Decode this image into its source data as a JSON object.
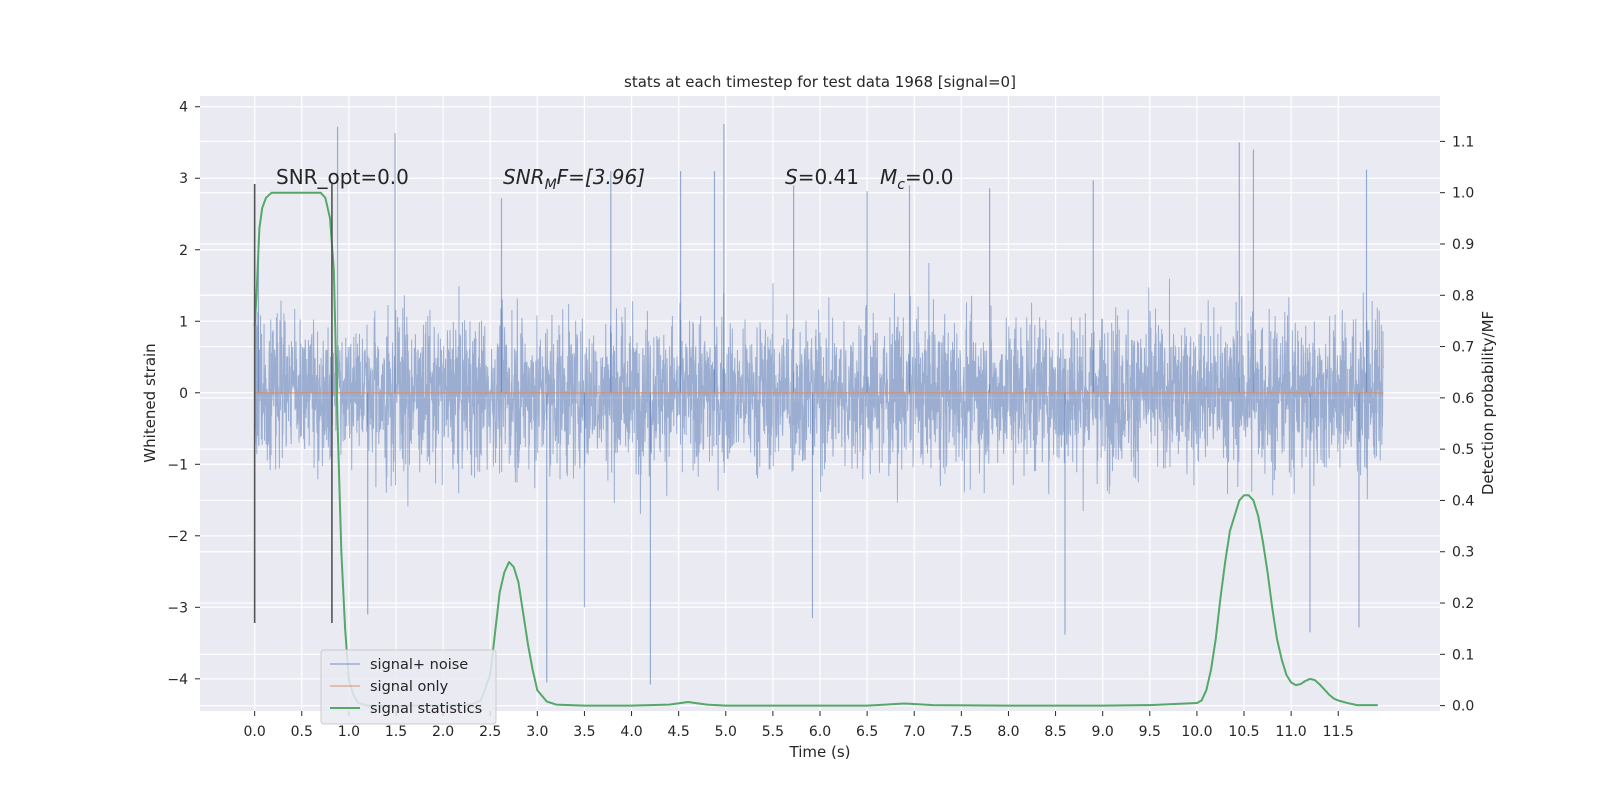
{
  "chart_data": {
    "type": "line",
    "title": "stats at each timestep for test data 1968 [signal=0]",
    "xlabel": "Time (s)",
    "ylabel": "Whitened strain",
    "y2label": "Detection probability/MF",
    "xlim": [
      -0.58,
      12.58
    ],
    "ylim": [
      -4.45,
      4.15
    ],
    "y2lim": [
      -0.0105,
      1.1885
    ],
    "x_ticks": [
      "0.0",
      "0.5",
      "1.0",
      "1.5",
      "2.0",
      "2.5",
      "3.0",
      "3.5",
      "4.0",
      "4.5",
      "5.0",
      "5.5",
      "6.0",
      "6.5",
      "7.0",
      "7.5",
      "8.0",
      "8.5",
      "9.0",
      "9.5",
      "10.0",
      "10.5",
      "11.0",
      "11.5"
    ],
    "y_ticks": [
      "−4",
      "−3",
      "−2",
      "−1",
      "0",
      "1",
      "2",
      "3",
      "4"
    ],
    "y2_ticks": [
      "0.0",
      "0.1",
      "0.2",
      "0.3",
      "0.4",
      "0.5",
      "0.6",
      "0.7",
      "0.8",
      "0.9",
      "1.0",
      "1.1"
    ],
    "grid": true,
    "legend_position": "lower-left",
    "annotations": {
      "snr_opt": "SNR_opt=0.0",
      "snr_mf": {
        "base": "SNR",
        "sub": "M",
        "rest": "F=[3.96]"
      },
      "s": {
        "symbol": "S",
        "rest": "=0.41"
      },
      "mc": {
        "base": "M",
        "sub": "c",
        "rest": "=0.0"
      }
    },
    "vertical_markers": [
      {
        "x": 0.0,
        "y_range": [
          -3.22,
          2.92
        ]
      },
      {
        "x": 0.82,
        "y_range": [
          -3.22,
          2.92
        ]
      }
    ],
    "series": [
      {
        "name": "signal+ noise",
        "color": "#4c72b0",
        "axis": "left",
        "description_type": "noise",
        "x_range": [
          0.0,
          11.98
        ],
        "typical_envelope": [
          -2.2,
          2.2
        ],
        "spikes": [
          [
            0.04,
            2.15
          ],
          [
            0.88,
            3.72
          ],
          [
            1.49,
            3.63
          ],
          [
            2.62,
            2.72
          ],
          [
            3.1,
            -4.05
          ],
          [
            3.5,
            -3.0
          ],
          [
            3.78,
            3.1
          ],
          [
            4.2,
            -4.08
          ],
          [
            4.52,
            3.1
          ],
          [
            4.98,
            3.76
          ],
          [
            4.88,
            3.1
          ],
          [
            5.72,
            2.9
          ],
          [
            5.92,
            -3.15
          ],
          [
            6.95,
            2.9
          ],
          [
            8.6,
            -3.38
          ],
          [
            8.9,
            2.97
          ],
          [
            10.45,
            3.5
          ],
          [
            10.6,
            3.4
          ],
          [
            11.2,
            -3.35
          ],
          [
            11.8,
            3.12
          ],
          [
            11.72,
            -3.28
          ],
          [
            1.2,
            -3.1
          ],
          [
            6.5,
            2.82
          ],
          [
            7.8,
            2.86
          ]
        ]
      },
      {
        "name": "signal only",
        "color": "#dd8452",
        "axis": "left",
        "x": [
          0.0,
          11.98
        ],
        "y": [
          0.0,
          0.0
        ]
      },
      {
        "name": "signal statistics",
        "color": "#55a868",
        "axis": "right",
        "x": [
          0.0,
          0.02,
          0.05,
          0.08,
          0.12,
          0.18,
          0.3,
          0.5,
          0.7,
          0.75,
          0.8,
          0.84,
          0.88,
          0.92,
          0.96,
          1.0,
          1.05,
          1.1,
          1.2,
          1.5,
          2.0,
          2.3,
          2.4,
          2.5,
          2.55,
          2.6,
          2.65,
          2.7,
          2.75,
          2.8,
          2.85,
          2.9,
          2.95,
          3.0,
          3.1,
          3.2,
          3.5,
          4.0,
          4.4,
          4.6,
          4.8,
          5.0,
          6.0,
          6.5,
          6.9,
          7.2,
          8.0,
          9.0,
          9.5,
          10.0,
          10.05,
          10.1,
          10.15,
          10.2,
          10.25,
          10.3,
          10.35,
          10.4,
          10.45,
          10.5,
          10.55,
          10.6,
          10.65,
          10.7,
          10.75,
          10.8,
          10.85,
          10.9,
          10.95,
          11.0,
          11.05,
          11.1,
          11.15,
          11.2,
          11.25,
          11.3,
          11.35,
          11.4,
          11.45,
          11.5,
          11.6,
          11.7,
          11.92
        ],
        "y": [
          0.74,
          0.8,
          0.93,
          0.97,
          0.99,
          1.0,
          1.0,
          1.0,
          1.0,
          0.99,
          0.95,
          0.85,
          0.55,
          0.3,
          0.15,
          0.05,
          0.02,
          0.005,
          0.0,
          0.0,
          0.0,
          0.002,
          0.01,
          0.06,
          0.14,
          0.22,
          0.26,
          0.28,
          0.27,
          0.24,
          0.18,
          0.12,
          0.07,
          0.03,
          0.008,
          0.002,
          0.0,
          0.0,
          0.002,
          0.007,
          0.002,
          0.0,
          0.0,
          0.0,
          0.004,
          0.001,
          0.0,
          0.0,
          0.001,
          0.005,
          0.01,
          0.03,
          0.07,
          0.13,
          0.21,
          0.28,
          0.34,
          0.37,
          0.4,
          0.41,
          0.41,
          0.4,
          0.37,
          0.32,
          0.26,
          0.19,
          0.13,
          0.09,
          0.06,
          0.045,
          0.04,
          0.042,
          0.048,
          0.052,
          0.05,
          0.042,
          0.032,
          0.022,
          0.014,
          0.01,
          0.005,
          0.001,
          0.001
        ]
      }
    ]
  }
}
